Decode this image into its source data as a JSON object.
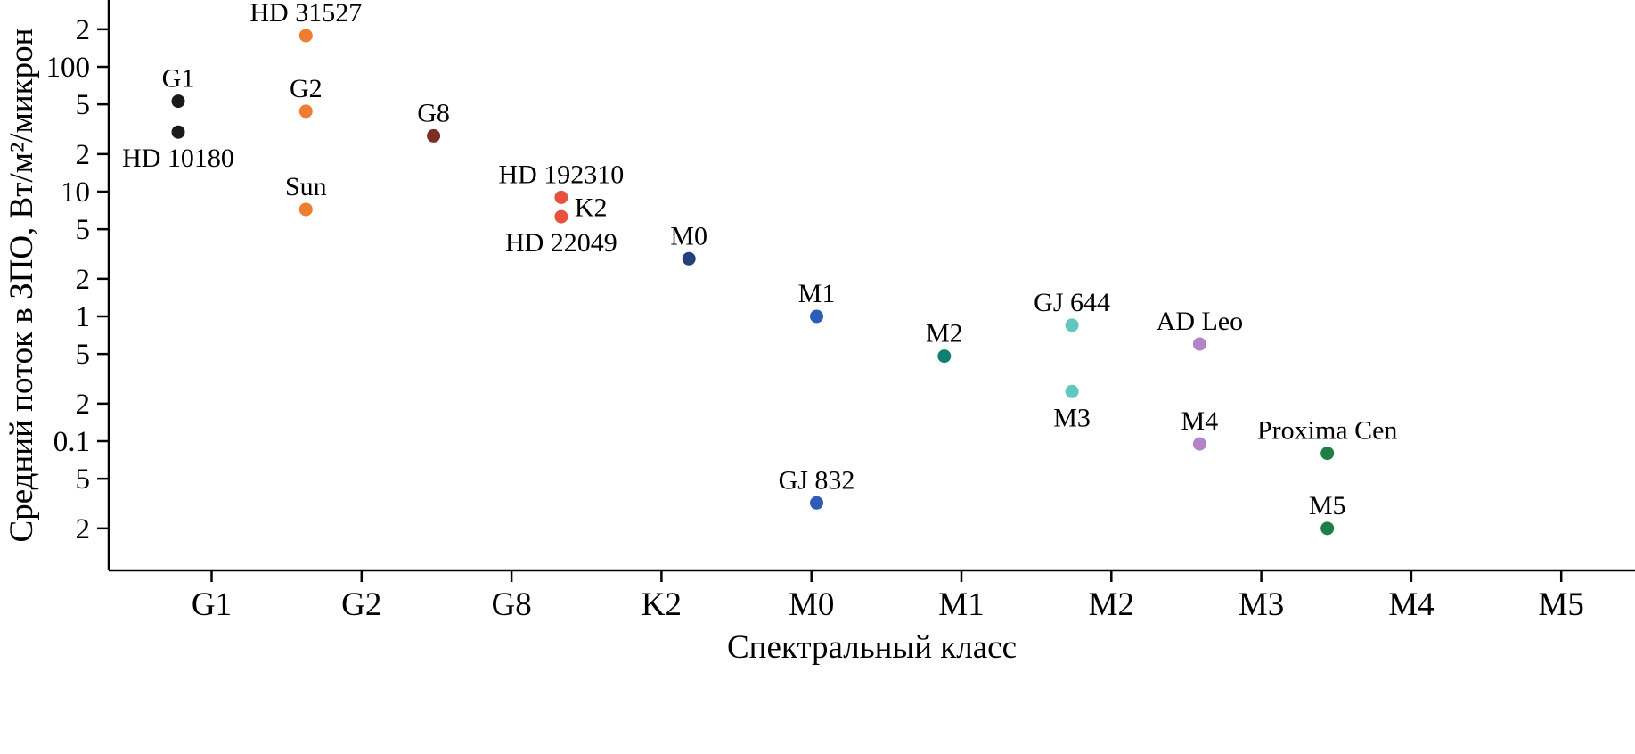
{
  "chart_data": {
    "type": "scatter",
    "title": "",
    "xlabel": "Спектральный класс",
    "ylabel": "Средний поток в ЗПО, Вт/м²/микрон",
    "x_categories": [
      "G1",
      "G2",
      "G8",
      "K2",
      "M0",
      "M1",
      "M2",
      "M3",
      "M4",
      "M5"
    ],
    "y_scale": "log",
    "ylim": [
      0.009,
      340
    ],
    "grid": false,
    "legend": "none",
    "y_ticks": [
      {
        "value": 200,
        "label": "2"
      },
      {
        "value": 100,
        "label": "100"
      },
      {
        "value": 50,
        "label": "5"
      },
      {
        "value": 20,
        "label": "2"
      },
      {
        "value": 10,
        "label": "10"
      },
      {
        "value": 5,
        "label": "5"
      },
      {
        "value": 2,
        "label": "2"
      },
      {
        "value": 1,
        "label": "1"
      },
      {
        "value": 0.5,
        "label": "5"
      },
      {
        "value": 0.2,
        "label": "2"
      },
      {
        "value": 0.1,
        "label": "0.1"
      },
      {
        "value": 0.05,
        "label": "5"
      },
      {
        "value": 0.02,
        "label": "2"
      }
    ],
    "points": [
      {
        "label": "G1",
        "category": "G1",
        "value": 53,
        "color": "#1a1a1a",
        "label_pos": "above"
      },
      {
        "label": "HD 10180",
        "category": "G1",
        "value": 30,
        "color": "#1a1a1a",
        "label_pos": "below"
      },
      {
        "label": "HD 31527",
        "category": "G2",
        "value": 178,
        "color": "#ED7D31",
        "label_pos": "above"
      },
      {
        "label": "G2",
        "category": "G2",
        "value": 44,
        "color": "#ED7D31",
        "label_pos": "above"
      },
      {
        "label": "Sun",
        "category": "G2",
        "value": 7.2,
        "color": "#ED7D31",
        "label_pos": "above"
      },
      {
        "label": "G8",
        "category": "G8",
        "value": 28,
        "color": "#7B2D26",
        "label_pos": "above"
      },
      {
        "label": "HD 192310",
        "category": "K2",
        "value": 9,
        "color": "#E8513D",
        "label_pos": "above"
      },
      {
        "label": "K2",
        "category": "K2",
        "value": 7.6,
        "color": "#E8513D",
        "label_pos": "right",
        "marker": false
      },
      {
        "label": "HD 22049",
        "category": "K2",
        "value": 6.3,
        "color": "#E8513D",
        "label_pos": "below"
      },
      {
        "label": "M0",
        "category": "M0",
        "value": 2.9,
        "color": "#243F7C",
        "label_pos": "above"
      },
      {
        "label": "M1",
        "category": "M1",
        "value": 1.0,
        "color": "#2E5CB8",
        "label_pos": "above"
      },
      {
        "label": "GJ 832",
        "category": "M1",
        "value": 0.032,
        "color": "#2E5CB8",
        "label_pos": "above"
      },
      {
        "label": "M2",
        "category": "M2",
        "value": 0.48,
        "color": "#0E8070",
        "label_pos": "above"
      },
      {
        "label": "GJ 644",
        "category": "M3",
        "value": 0.85,
        "color": "#62C6C0",
        "label_pos": "above"
      },
      {
        "label": "M3",
        "category": "M3",
        "value": 0.25,
        "color": "#62C6C0",
        "label_pos": "below"
      },
      {
        "label": "AD Leo",
        "category": "M4",
        "value": 0.6,
        "color": "#B283C6",
        "label_pos": "above"
      },
      {
        "label": "M4",
        "category": "M4",
        "value": 0.095,
        "color": "#B283C6",
        "label_pos": "above"
      },
      {
        "label": "Proxima Cen",
        "category": "M5",
        "value": 0.08,
        "color": "#1C8044",
        "label_pos": "above"
      },
      {
        "label": "M5",
        "category": "M5",
        "value": 0.02,
        "color": "#1C8044",
        "label_pos": "above"
      }
    ],
    "axis_color": "#000000",
    "background_color": "#ffffff"
  }
}
